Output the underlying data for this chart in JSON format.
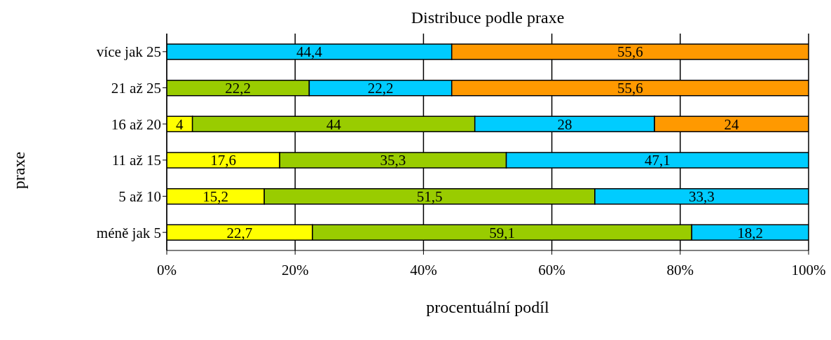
{
  "chart_data": {
    "type": "bar",
    "orientation": "horizontal",
    "stacked": true,
    "title": "Distribuce podle praxe",
    "xlabel": "procentuální podíl",
    "ylabel": "praxe",
    "categories": [
      "více jak 25",
      "21 až 25",
      "16 až 20",
      "11 až 15",
      "5 až 10",
      "méně jak 5"
    ],
    "series": [
      {
        "color": "#ffff00",
        "values": [
          null,
          null,
          4,
          17.6,
          15.2,
          22.7
        ],
        "value_labels": [
          null,
          null,
          "4",
          "17,6",
          "15,2",
          "22,7"
        ]
      },
      {
        "color": "#99cc00",
        "values": [
          null,
          22.2,
          44,
          35.3,
          51.5,
          59.1
        ],
        "value_labels": [
          null,
          "22,2",
          "44",
          "35,3",
          "51,5",
          "59,1"
        ]
      },
      {
        "color": "#00ccff",
        "values": [
          44.4,
          22.2,
          28,
          47.1,
          33.3,
          18.2
        ],
        "value_labels": [
          "44,4",
          "22,2",
          "28",
          "47,1",
          "33,3",
          "18,2"
        ]
      },
      {
        "color": "#ff9900",
        "values": [
          55.6,
          55.6,
          24,
          null,
          null,
          null
        ],
        "value_labels": [
          "55,6",
          "55,6",
          "24",
          null,
          null,
          null
        ]
      }
    ],
    "xlim": [
      0,
      100
    ],
    "xticks": [
      {
        "value": 0,
        "label": "0%"
      },
      {
        "value": 20,
        "label": "20%"
      },
      {
        "value": 40,
        "label": "40%"
      },
      {
        "value": 60,
        "label": "60%"
      },
      {
        "value": 80,
        "label": "80%"
      },
      {
        "value": 100,
        "label": "100%"
      }
    ],
    "grid": "x",
    "legend": false
  }
}
